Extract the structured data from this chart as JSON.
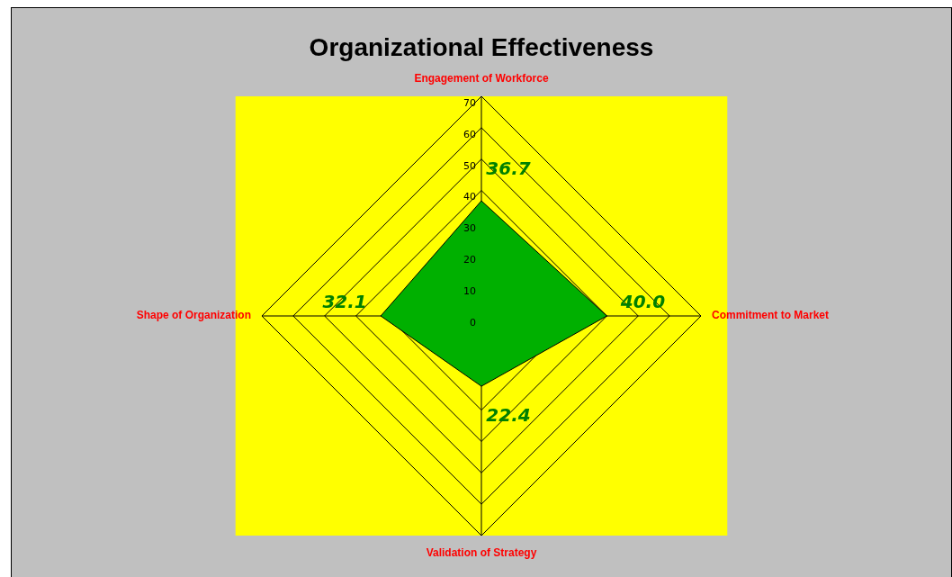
{
  "chart_data": {
    "type": "radar",
    "title": "Organizational Effectiveness",
    "categories": [
      "Engagement of Workforce",
      "Commitment to Market",
      "Validation of Strategy",
      "Shape of Organization"
    ],
    "series": [
      {
        "color": "#00b000",
        "values": [
          36.7,
          40.0,
          22.4,
          32.1
        ],
        "value_labels": [
          "36.7",
          "40.0",
          "22.4",
          "32.1"
        ]
      }
    ],
    "ylim": [
      0,
      70
    ],
    "yticks": [
      0,
      10,
      20,
      30,
      40,
      50,
      60,
      70
    ],
    "grid": true,
    "marker": "none"
  }
}
